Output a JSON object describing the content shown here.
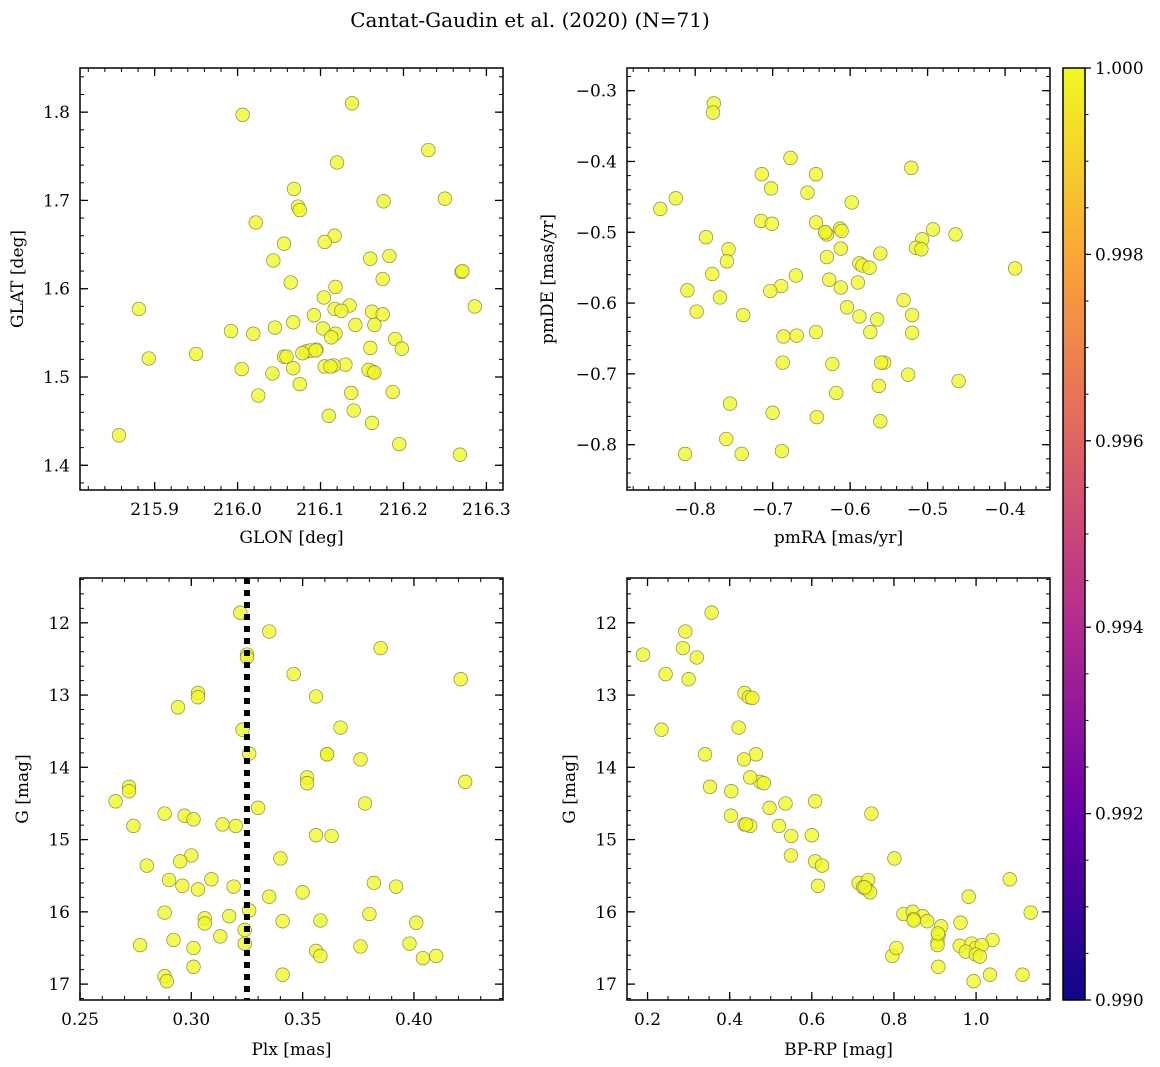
{
  "figure": {
    "title": "Cantat-Gaudin et al. (2020) (N=71)"
  },
  "colors": {
    "point_fill": "#f0f921",
    "point_edge": "#8a8a50",
    "frame": "#000000",
    "cbar_stops": [
      "#0d0887",
      "#6a00a8",
      "#b12a90",
      "#e16462",
      "#fca636",
      "#f0f921"
    ]
  },
  "colorbar": {
    "ticks": [
      "0.990",
      "0.992",
      "0.994",
      "0.996",
      "0.998",
      "1.000"
    ],
    "range": [
      0.99,
      1.0
    ]
  },
  "chart_data": [
    {
      "type": "scatter",
      "xlabel": "GLON [deg]",
      "ylabel": "GLAT [deg]",
      "xlim": [
        215.81,
        216.32
      ],
      "ylim": [
        1.372,
        1.85
      ],
      "invert_y": false,
      "xticks": [
        215.9,
        216.0,
        216.1,
        216.2,
        216.3
      ],
      "xtick_labels": [
        "215.9",
        "216.0",
        "216.1",
        "216.2",
        "216.3"
      ],
      "xminor_step": 0.02,
      "yticks": [
        1.4,
        1.5,
        1.6,
        1.7,
        1.8
      ],
      "ytick_labels": [
        "1.4",
        "1.5",
        "1.6",
        "1.7",
        "1.8"
      ],
      "yminor_step": 0.02,
      "points": [
        [
          216.006,
          1.797
        ],
        [
          216.138,
          1.81
        ],
        [
          216.23,
          1.757
        ],
        [
          216.12,
          1.743
        ],
        [
          216.068,
          1.713
        ],
        [
          216.25,
          1.702
        ],
        [
          216.176,
          1.699
        ],
        [
          216.073,
          1.693
        ],
        [
          216.075,
          1.689
        ],
        [
          216.022,
          1.675
        ],
        [
          216.117,
          1.66
        ],
        [
          216.105,
          1.653
        ],
        [
          216.056,
          1.651
        ],
        [
          216.183,
          1.637
        ],
        [
          216.16,
          1.634
        ],
        [
          216.043,
          1.632
        ],
        [
          216.27,
          1.619
        ],
        [
          216.271,
          1.62
        ],
        [
          216.175,
          1.611
        ],
        [
          216.064,
          1.607
        ],
        [
          216.118,
          1.602
        ],
        [
          216.104,
          1.59
        ],
        [
          216.286,
          1.58
        ],
        [
          215.881,
          1.577
        ],
        [
          216.135,
          1.581
        ],
        [
          216.117,
          1.577
        ],
        [
          216.125,
          1.575
        ],
        [
          216.162,
          1.574
        ],
        [
          216.175,
          1.571
        ],
        [
          216.092,
          1.57
        ],
        [
          216.067,
          1.562
        ],
        [
          216.142,
          1.559
        ],
        [
          216.165,
          1.559
        ],
        [
          216.045,
          1.556
        ],
        [
          216.103,
          1.555
        ],
        [
          215.992,
          1.552
        ],
        [
          216.019,
          1.549
        ],
        [
          216.118,
          1.549
        ],
        [
          216.113,
          1.545
        ],
        [
          216.19,
          1.543
        ],
        [
          216.16,
          1.533
        ],
        [
          216.198,
          1.532
        ],
        [
          216.095,
          1.531
        ],
        [
          216.083,
          1.529
        ],
        [
          216.088,
          1.53
        ],
        [
          216.078,
          1.527
        ],
        [
          215.95,
          1.526
        ],
        [
          216.056,
          1.523
        ],
        [
          216.059,
          1.523
        ],
        [
          215.893,
          1.521
        ],
        [
          216.13,
          1.514
        ],
        [
          216.105,
          1.512
        ],
        [
          216.116,
          1.513
        ],
        [
          216.067,
          1.51
        ],
        [
          216.005,
          1.509
        ],
        [
          216.163,
          1.506
        ],
        [
          216.158,
          1.508
        ],
        [
          216.165,
          1.505
        ],
        [
          216.042,
          1.504
        ],
        [
          216.075,
          1.492
        ],
        [
          216.187,
          1.483
        ],
        [
          216.137,
          1.482
        ],
        [
          216.025,
          1.479
        ],
        [
          216.14,
          1.462
        ],
        [
          216.11,
          1.456
        ],
        [
          216.162,
          1.448
        ],
        [
          216.195,
          1.424
        ],
        [
          216.268,
          1.412
        ],
        [
          215.857,
          1.434
        ],
        [
          216.112,
          1.512
        ],
        [
          216.094,
          1.53
        ]
      ]
    },
    {
      "type": "scatter",
      "xlabel": "pmRA [mas/yr]",
      "ylabel": "pmDE [mas/yr]",
      "xlim": [
        -0.888,
        -0.342
      ],
      "ylim": [
        -0.864,
        -0.268
      ],
      "invert_y": false,
      "xticks": [
        -0.8,
        -0.7,
        -0.6,
        -0.5,
        -0.4
      ],
      "xtick_labels": [
        "−0.8",
        "−0.7",
        "−0.6",
        "−0.5",
        "−0.4"
      ],
      "xminor_step": 0.02,
      "yticks": [
        -0.8,
        -0.7,
        -0.6,
        -0.5,
        -0.4,
        -0.3
      ],
      "ytick_labels": [
        "−0.8",
        "−0.7",
        "−0.6",
        "−0.5",
        "−0.4",
        "−0.3"
      ],
      "yminor_step": 0.02,
      "points": [
        [
          -0.776,
          -0.318
        ],
        [
          -0.777,
          -0.331
        ],
        [
          -0.677,
          -0.395
        ],
        [
          -0.521,
          -0.409
        ],
        [
          -0.714,
          -0.418
        ],
        [
          -0.644,
          -0.418
        ],
        [
          -0.702,
          -0.438
        ],
        [
          -0.655,
          -0.444
        ],
        [
          -0.845,
          -0.467
        ],
        [
          -0.825,
          -0.452
        ],
        [
          -0.598,
          -0.458
        ],
        [
          -0.715,
          -0.484
        ],
        [
          -0.644,
          -0.486
        ],
        [
          -0.701,
          -0.488
        ],
        [
          -0.493,
          -0.496
        ],
        [
          -0.613,
          -0.495
        ],
        [
          -0.611,
          -0.498
        ],
        [
          -0.632,
          -0.5
        ],
        [
          -0.63,
          -0.503
        ],
        [
          -0.464,
          -0.503
        ],
        [
          -0.786,
          -0.507
        ],
        [
          -0.507,
          -0.51
        ],
        [
          -0.515,
          -0.522
        ],
        [
          -0.757,
          -0.524
        ],
        [
          -0.612,
          -0.523
        ],
        [
          -0.508,
          -0.524
        ],
        [
          -0.561,
          -0.53
        ],
        [
          -0.759,
          -0.541
        ],
        [
          -0.63,
          -0.535
        ],
        [
          -0.588,
          -0.544
        ],
        [
          -0.584,
          -0.547
        ],
        [
          -0.575,
          -0.55
        ],
        [
          -0.387,
          -0.551
        ],
        [
          -0.778,
          -0.559
        ],
        [
          -0.67,
          -0.561
        ],
        [
          -0.627,
          -0.567
        ],
        [
          -0.612,
          -0.578
        ],
        [
          -0.689,
          -0.576
        ],
        [
          -0.703,
          -0.583
        ],
        [
          -0.81,
          -0.582
        ],
        [
          -0.59,
          -0.571
        ],
        [
          -0.768,
          -0.592
        ],
        [
          -0.531,
          -0.596
        ],
        [
          -0.604,
          -0.606
        ],
        [
          -0.798,
          -0.612
        ],
        [
          -0.738,
          -0.617
        ],
        [
          -0.588,
          -0.619
        ],
        [
          -0.565,
          -0.623
        ],
        [
          -0.52,
          -0.617
        ],
        [
          -0.574,
          -0.641
        ],
        [
          -0.644,
          -0.641
        ],
        [
          -0.52,
          -0.642
        ],
        [
          -0.686,
          -0.647
        ],
        [
          -0.669,
          -0.646
        ],
        [
          -0.687,
          -0.684
        ],
        [
          -0.623,
          -0.686
        ],
        [
          -0.556,
          -0.684
        ],
        [
          -0.525,
          -0.701
        ],
        [
          -0.563,
          -0.717
        ],
        [
          -0.46,
          -0.71
        ],
        [
          -0.618,
          -0.727
        ],
        [
          -0.755,
          -0.742
        ],
        [
          -0.7,
          -0.755
        ],
        [
          -0.643,
          -0.761
        ],
        [
          -0.561,
          -0.767
        ],
        [
          -0.76,
          -0.792
        ],
        [
          -0.688,
          -0.809
        ],
        [
          -0.813,
          -0.813
        ],
        [
          -0.74,
          -0.813
        ],
        [
          -0.56,
          -0.684
        ],
        [
          -0.632,
          -0.5
        ]
      ]
    },
    {
      "type": "scatter",
      "xlabel": "Plx [mas]",
      "ylabel": "G [mag]",
      "xlim": [
        0.25,
        0.44
      ],
      "ylim": [
        11.38,
        17.22
      ],
      "invert_y": true,
      "vline": 0.325,
      "xticks": [
        0.25,
        0.3,
        0.35,
        0.4
      ],
      "xtick_labels": [
        "0.25",
        "0.30",
        "0.35",
        "0.40"
      ],
      "xminor_step": 0.01,
      "yticks": [
        12,
        13,
        14,
        15,
        16,
        17
      ],
      "ytick_labels": [
        "12",
        "13",
        "14",
        "15",
        "16",
        "17"
      ],
      "yminor_step": 0.2,
      "points": [
        [
          0.322,
          11.86
        ],
        [
          0.335,
          12.12
        ],
        [
          0.325,
          12.44
        ],
        [
          0.325,
          12.48
        ],
        [
          0.385,
          12.35
        ],
        [
          0.421,
          12.78
        ],
        [
          0.346,
          12.71
        ],
        [
          0.303,
          12.97
        ],
        [
          0.303,
          13.03
        ],
        [
          0.356,
          13.02
        ],
        [
          0.294,
          13.17
        ],
        [
          0.323,
          13.48
        ],
        [
          0.326,
          13.81
        ],
        [
          0.367,
          13.45
        ],
        [
          0.361,
          13.82
        ],
        [
          0.376,
          13.89
        ],
        [
          0.272,
          14.27
        ],
        [
          0.272,
          14.33
        ],
        [
          0.352,
          14.14
        ],
        [
          0.352,
          14.22
        ],
        [
          0.266,
          14.47
        ],
        [
          0.378,
          14.5
        ],
        [
          0.33,
          14.56
        ],
        [
          0.423,
          14.2
        ],
        [
          0.288,
          14.64
        ],
        [
          0.297,
          14.67
        ],
        [
          0.301,
          14.72
        ],
        [
          0.314,
          14.79
        ],
        [
          0.32,
          14.81
        ],
        [
          0.274,
          14.81
        ],
        [
          0.356,
          14.94
        ],
        [
          0.363,
          14.95
        ],
        [
          0.3,
          15.22
        ],
        [
          0.295,
          15.3
        ],
        [
          0.34,
          15.26
        ],
        [
          0.28,
          15.36
        ],
        [
          0.309,
          15.55
        ],
        [
          0.29,
          15.56
        ],
        [
          0.296,
          15.64
        ],
        [
          0.303,
          15.69
        ],
        [
          0.319,
          15.65
        ],
        [
          0.35,
          15.73
        ],
        [
          0.335,
          15.79
        ],
        [
          0.382,
          15.6
        ],
        [
          0.392,
          15.65
        ],
        [
          0.288,
          16.01
        ],
        [
          0.326,
          15.98
        ],
        [
          0.317,
          16.06
        ],
        [
          0.306,
          16.09
        ],
        [
          0.306,
          16.16
        ],
        [
          0.358,
          16.12
        ],
        [
          0.341,
          16.13
        ],
        [
          0.38,
          16.03
        ],
        [
          0.401,
          16.15
        ],
        [
          0.313,
          16.34
        ],
        [
          0.324,
          16.25
        ],
        [
          0.292,
          16.39
        ],
        [
          0.324,
          16.44
        ],
        [
          0.277,
          16.46
        ],
        [
          0.301,
          16.5
        ],
        [
          0.356,
          16.54
        ],
        [
          0.358,
          16.61
        ],
        [
          0.376,
          16.48
        ],
        [
          0.398,
          16.44
        ],
        [
          0.404,
          16.64
        ],
        [
          0.41,
          16.61
        ],
        [
          0.301,
          16.76
        ],
        [
          0.341,
          16.87
        ],
        [
          0.288,
          16.89
        ],
        [
          0.289,
          16.96
        ],
        [
          0.361,
          13.82
        ]
      ]
    },
    {
      "type": "scatter",
      "xlabel": "BP-RP [mag]",
      "ylabel": "G [mag]",
      "xlim": [
        0.15,
        1.18
      ],
      "ylim": [
        11.38,
        17.22
      ],
      "invert_y": true,
      "xticks": [
        0.2,
        0.4,
        0.6,
        0.8,
        1.0
      ],
      "xtick_labels": [
        "0.2",
        "0.4",
        "0.6",
        "0.8",
        "1.0"
      ],
      "xminor_step": 0.05,
      "yticks": [
        12,
        13,
        14,
        15,
        16,
        17
      ],
      "ytick_labels": [
        "12",
        "13",
        "14",
        "15",
        "16",
        "17"
      ],
      "yminor_step": 0.2,
      "points": [
        [
          0.356,
          11.86
        ],
        [
          0.292,
          12.12
        ],
        [
          0.189,
          12.44
        ],
        [
          0.286,
          12.35
        ],
        [
          0.32,
          12.48
        ],
        [
          0.244,
          12.71
        ],
        [
          0.3,
          12.78
        ],
        [
          0.436,
          12.97
        ],
        [
          0.447,
          13.03
        ],
        [
          0.455,
          13.04
        ],
        [
          0.234,
          13.48
        ],
        [
          0.422,
          13.45
        ],
        [
          0.34,
          13.82
        ],
        [
          0.464,
          13.82
        ],
        [
          0.435,
          13.89
        ],
        [
          0.474,
          14.2
        ],
        [
          0.483,
          14.22
        ],
        [
          0.352,
          14.27
        ],
        [
          0.404,
          14.33
        ],
        [
          0.45,
          14.14
        ],
        [
          0.608,
          14.47
        ],
        [
          0.536,
          14.5
        ],
        [
          0.497,
          14.56
        ],
        [
          0.745,
          14.64
        ],
        [
          0.403,
          14.67
        ],
        [
          0.436,
          14.79
        ],
        [
          0.45,
          14.81
        ],
        [
          0.52,
          14.81
        ],
        [
          0.55,
          14.95
        ],
        [
          0.6,
          14.94
        ],
        [
          0.549,
          15.22
        ],
        [
          0.608,
          15.3
        ],
        [
          0.625,
          15.36
        ],
        [
          0.801,
          15.26
        ],
        [
          0.714,
          15.6
        ],
        [
          0.737,
          15.56
        ],
        [
          0.725,
          15.66
        ],
        [
          0.735,
          15.69
        ],
        [
          0.742,
          15.73
        ],
        [
          0.615,
          15.64
        ],
        [
          1.082,
          15.55
        ],
        [
          0.823,
          16.03
        ],
        [
          0.846,
          16.0
        ],
        [
          0.87,
          16.06
        ],
        [
          0.848,
          16.1
        ],
        [
          0.881,
          16.13
        ],
        [
          0.848,
          16.12
        ],
        [
          0.962,
          16.15
        ],
        [
          0.915,
          16.2
        ],
        [
          0.909,
          16.32
        ],
        [
          0.982,
          15.79
        ],
        [
          1.133,
          16.01
        ],
        [
          0.906,
          16.42
        ],
        [
          0.906,
          16.46
        ],
        [
          0.96,
          16.47
        ],
        [
          0.989,
          16.44
        ],
        [
          1.0,
          16.5
        ],
        [
          1.04,
          16.39
        ],
        [
          1.014,
          16.46
        ],
        [
          0.975,
          16.55
        ],
        [
          0.796,
          16.61
        ],
        [
          0.806,
          16.5
        ],
        [
          0.999,
          16.59
        ],
        [
          1.009,
          16.62
        ],
        [
          0.908,
          16.76
        ],
        [
          1.034,
          16.87
        ],
        [
          1.113,
          16.87
        ],
        [
          0.994,
          16.96
        ],
        [
          0.907,
          16.3
        ],
        [
          0.729,
          15.66
        ],
        [
          0.44,
          14.79
        ]
      ]
    }
  ]
}
